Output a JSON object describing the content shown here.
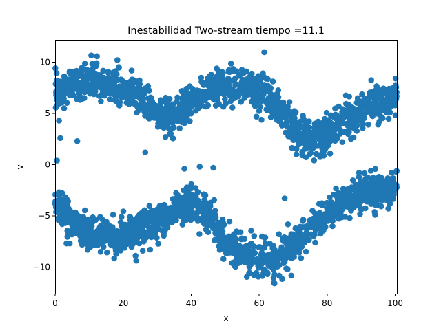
{
  "chart_data": {
    "type": "scatter",
    "title": "Inestabilidad Two-stream  tiempo =11.1",
    "xlabel": "x",
    "ylabel": "v",
    "xlim": [
      0,
      100.5
    ],
    "ylim": [
      -12.6,
      12.2
    ],
    "x_ticks": [
      0,
      20,
      40,
      60,
      80,
      100
    ],
    "y_ticks": [
      -10,
      -5,
      0,
      5,
      10
    ],
    "x_tick_labels": [
      "0",
      "20",
      "40",
      "60",
      "80",
      "100"
    ],
    "y_tick_labels": [
      "−10",
      "−5",
      "0",
      "5",
      "10"
    ],
    "grid": false,
    "marker_color": "#1f77b4",
    "series": [
      {
        "stream": "upper",
        "x": [
          0,
          5,
          10,
          15,
          20,
          25,
          30,
          35,
          40,
          45,
          50,
          55,
          60,
          65,
          70,
          75,
          80,
          85,
          90,
          95,
          100
        ],
        "y": [
          7.1,
          7.8,
          8.1,
          7.8,
          7.4,
          6.5,
          4.9,
          4.6,
          5.9,
          7.2,
          7.8,
          7.7,
          7.0,
          5.9,
          3.7,
          2.3,
          3.1,
          4.3,
          5.4,
          6.1,
          6.6
        ]
      },
      {
        "stream": "lower",
        "x": [
          0,
          5,
          10,
          15,
          20,
          25,
          30,
          35,
          40,
          45,
          50,
          55,
          60,
          65,
          70,
          75,
          80,
          85,
          90,
          95,
          100
        ],
        "y": [
          -3.4,
          -5.6,
          -6.7,
          -7.0,
          -6.9,
          -6.4,
          -5.8,
          -4.4,
          -3.7,
          -4.8,
          -7.3,
          -8.8,
          -9.4,
          -9.0,
          -7.9,
          -6.3,
          -4.7,
          -3.7,
          -2.9,
          -2.6,
          -2.4
        ]
      }
    ],
    "outliers": [
      {
        "x": 1.5,
        "y": 2.6
      },
      {
        "x": 6.5,
        "y": 2.3
      },
      {
        "x": 26.5,
        "y": 1.2
      },
      {
        "x": 12.3,
        "y": 10.6
      },
      {
        "x": 61.5,
        "y": 11.0
      },
      {
        "x": 64.5,
        "y": -11.6
      },
      {
        "x": 67.5,
        "y": -3.3
      },
      {
        "x": 42.5,
        "y": -0.2
      },
      {
        "x": 46.5,
        "y": -0.3
      },
      {
        "x": 38.0,
        "y": -0.4
      },
      {
        "x": 0.5,
        "y": 0.4
      }
    ]
  }
}
